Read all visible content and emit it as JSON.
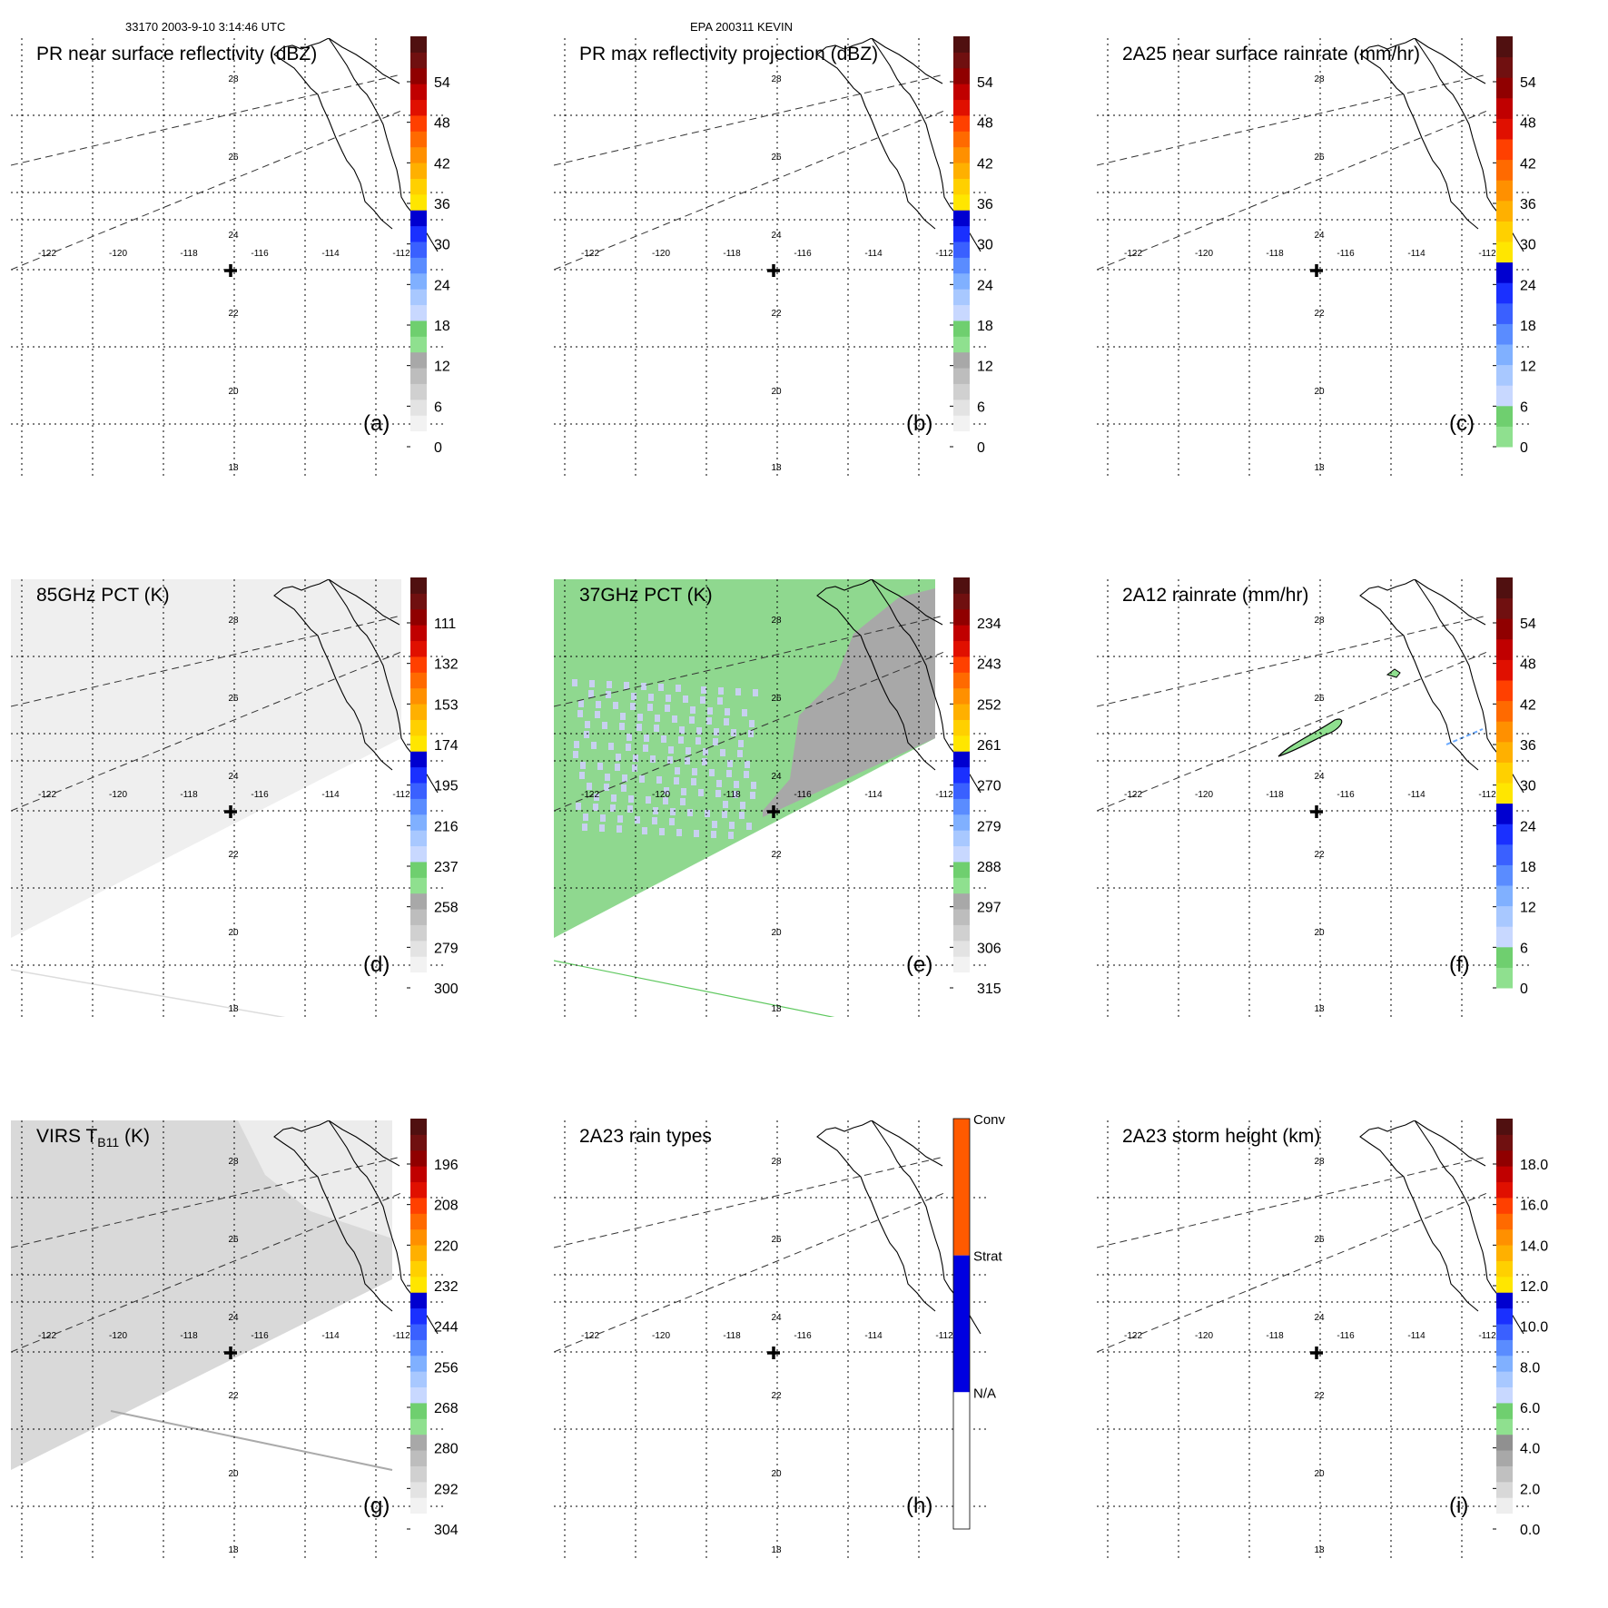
{
  "header": {
    "left": "33170 2003-9-10 3:14:46 UTC",
    "center": "EPA 200311 KEVIN"
  },
  "map": {
    "lon_labels": [
      "-122",
      "-120",
      "-118",
      "-116",
      "-114",
      "-112"
    ],
    "lat_labels": [
      "28",
      "26",
      "24",
      "22",
      "20",
      "18"
    ]
  },
  "panels": [
    {
      "id": "a",
      "title": "PR near surface reflectivity (dBZ)",
      "letter": "(a)",
      "cbar": "dbz",
      "ticks": [
        "54",
        "48",
        "42",
        "36",
        "30",
        "24",
        "18",
        "12",
        "6",
        "0"
      ],
      "fill": "none"
    },
    {
      "id": "b",
      "title": "PR max reflectivity projection (dBZ)",
      "letter": "(b)",
      "cbar": "dbz",
      "ticks": [
        "54",
        "48",
        "42",
        "36",
        "30",
        "24",
        "18",
        "12",
        "6",
        "0"
      ],
      "fill": "none"
    },
    {
      "id": "c",
      "title": "2A25 near surface rainrate (mm/hr)",
      "letter": "(c)",
      "cbar": "rain",
      "ticks": [
        "54",
        "48",
        "42",
        "36",
        "30",
        "24",
        "18",
        "12",
        "6",
        "0"
      ],
      "fill": "none"
    },
    {
      "id": "d",
      "title": "85GHz PCT (K)",
      "letter": "(d)",
      "cbar": "dbz",
      "ticks": [
        "111",
        "132",
        "153",
        "174",
        "195",
        "216",
        "237",
        "258",
        "279",
        "300"
      ],
      "fill": "gray-light"
    },
    {
      "id": "e",
      "title": "37GHz PCT (K)",
      "letter": "(e)",
      "cbar": "dbz",
      "ticks": [
        "234",
        "243",
        "252",
        "261",
        "270",
        "279",
        "288",
        "297",
        "306",
        "315"
      ],
      "fill": "green"
    },
    {
      "id": "f",
      "title": "2A12 rainrate (mm/hr)",
      "letter": "(f)",
      "cbar": "rain",
      "ticks": [
        "54",
        "48",
        "42",
        "36",
        "30",
        "24",
        "18",
        "12",
        "6",
        "0"
      ],
      "fill": "rain-blob"
    },
    {
      "id": "g",
      "title": "VIRS T",
      "title_sub": "B11",
      "title_tail": " (K)",
      "letter": "(g)",
      "cbar": "dbz",
      "ticks": [
        "196",
        "208",
        "220",
        "232",
        "244",
        "256",
        "268",
        "280",
        "292",
        "304"
      ],
      "fill": "gray-virs"
    },
    {
      "id": "h",
      "title": "2A23 rain types",
      "letter": "(h)",
      "cbar": "types",
      "ticks": [
        "Conv",
        "Strat",
        "N/A"
      ],
      "fill": "none"
    },
    {
      "id": "i",
      "title": "2A23 storm height (km)",
      "letter": "(i)",
      "cbar": "height",
      "ticks": [
        "18.0",
        "16.0",
        "14.0",
        "12.0",
        "10.0",
        "8.0",
        "6.0",
        "4.0",
        "2.0",
        "0.0"
      ],
      "fill": "none"
    }
  ],
  "colors": {
    "dbz": [
      "#ffffff",
      "#f2f2f2",
      "#e3e3e3",
      "#d0d0d0",
      "#bdbdbd",
      "#a8a8a8",
      "#8fe08f",
      "#6fcf6f",
      "#c8d8ff",
      "#a8c8ff",
      "#80b0ff",
      "#5a8cff",
      "#3a60ff",
      "#1a30ff",
      "#0000d0",
      "#ffe600",
      "#ffd000",
      "#ffb000",
      "#ff9000",
      "#ff6a00",
      "#ff4000",
      "#e01000",
      "#c00000",
      "#900000",
      "#701010",
      "#501010"
    ],
    "rain": [
      "#8fe08f",
      "#6fcf6f",
      "#c8d8ff",
      "#a8c8ff",
      "#80b0ff",
      "#5a8cff",
      "#3a60ff",
      "#1a30ff",
      "#0000d0",
      "#ffe600",
      "#ffd000",
      "#ffb000",
      "#ff9000",
      "#ff6a00",
      "#ff4000",
      "#e01000",
      "#c00000",
      "#900000",
      "#701010",
      "#501010"
    ],
    "types": [
      "#ffffff",
      "#0000e0",
      "#ff5a00"
    ]
  }
}
